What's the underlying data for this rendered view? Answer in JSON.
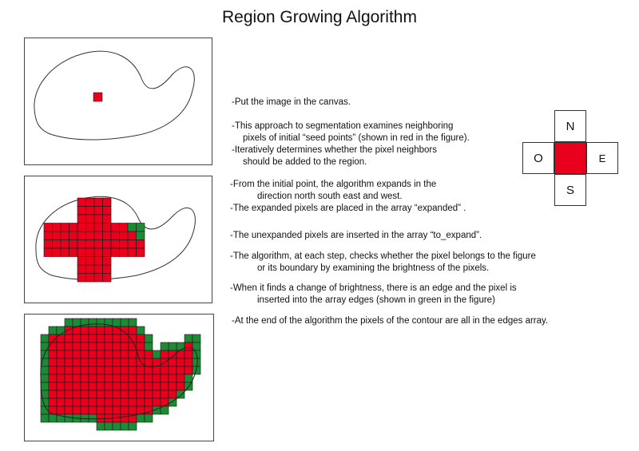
{
  "title": "Region Growing Algorithm",
  "colors": {
    "region": "#e8001c",
    "edge": "#1e8a35",
    "grid": "#1a1a1a"
  },
  "steps": [
    "-Put the image in the canvas.",
    "-This approach to segmentation examines neighboring",
    "pixels of initial “seed points” (shown in red in the figure).",
    "-Iteratively determines whether the pixel neighbors",
    "should be added to the region.",
    "-From the initial point, the algorithm expands in the",
    "direction north south east and west.",
    "-The expanded pixels are placed in the array “expanded” .",
    "-The unexpanded  pixels are inserted  in the array “to_expand”.",
    "-The  algorithm, at each step, checks whether the pixel belongs to the figure",
    "or its boundary by examining the brightness of the pixels.",
    "-When it finds a change of brightness, there is an edge and the pixel is",
    "inserted into the array edges (shown in green in the figure)",
    "-At the end of the algorithm the pixels of the contour are all in the  edges array."
  ],
  "compass": {
    "north": "N",
    "south": "S",
    "east": "E",
    "west": "O"
  }
}
